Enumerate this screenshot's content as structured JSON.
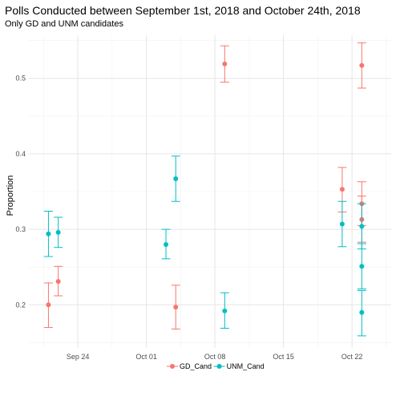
{
  "chart_data": {
    "type": "scatter",
    "title": "Polls Conducted between September 1st, 2018 and October 24th, 2018",
    "subtitle": "Only GD and UNM candidates",
    "xlabel": "",
    "ylabel": "Proportion",
    "x_ticks": [
      "Sep 24",
      "Oct 01",
      "Oct 08",
      "Oct 15",
      "Oct 22"
    ],
    "y_ticks": [
      "0.2",
      "0.3",
      "0.4",
      "0.5"
    ],
    "xlim": [
      "2018-09-19",
      "2018-10-26"
    ],
    "ylim": [
      0.143,
      0.557
    ],
    "grid": true,
    "legend_position": "bottom",
    "error_bars": true,
    "series": [
      {
        "name": "GD_Cand",
        "color": "#F8766D",
        "points": [
          {
            "x": "2018-09-21",
            "y": 0.2,
            "lo": 0.17,
            "hi": 0.229
          },
          {
            "x": "2018-09-22",
            "y": 0.231,
            "lo": 0.212,
            "hi": 0.251
          },
          {
            "x": "2018-10-04",
            "y": 0.197,
            "lo": 0.168,
            "hi": 0.226
          },
          {
            "x": "2018-10-09",
            "y": 0.519,
            "lo": 0.495,
            "hi": 0.543
          },
          {
            "x": "2018-10-21",
            "y": 0.353,
            "lo": 0.323,
            "hi": 0.382
          },
          {
            "x": "2018-10-23",
            "y": 0.517,
            "lo": 0.487,
            "hi": 0.547
          },
          {
            "x": "2018-10-23",
            "y": 0.334,
            "lo": 0.305,
            "hi": 0.363
          },
          {
            "x": "2018-10-23",
            "y": 0.313,
            "lo": 0.283,
            "hi": 0.344
          }
        ]
      },
      {
        "name": "UNM_Cand",
        "color": "#00BFC4",
        "points": [
          {
            "x": "2018-09-21",
            "y": 0.294,
            "lo": 0.264,
            "hi": 0.324
          },
          {
            "x": "2018-09-22",
            "y": 0.296,
            "lo": 0.276,
            "hi": 0.316
          },
          {
            "x": "2018-10-03",
            "y": 0.28,
            "lo": 0.261,
            "hi": 0.3
          },
          {
            "x": "2018-10-04",
            "y": 0.367,
            "lo": 0.337,
            "hi": 0.397
          },
          {
            "x": "2018-10-09",
            "y": 0.192,
            "lo": 0.169,
            "hi": 0.216
          },
          {
            "x": "2018-10-21",
            "y": 0.307,
            "lo": 0.277,
            "hi": 0.337
          },
          {
            "x": "2018-10-23",
            "y": 0.304,
            "lo": 0.274,
            "hi": 0.334
          },
          {
            "x": "2018-10-23",
            "y": 0.251,
            "lo": 0.221,
            "hi": 0.281
          },
          {
            "x": "2018-10-23",
            "y": 0.19,
            "lo": 0.159,
            "hi": 0.219
          }
        ]
      }
    ]
  }
}
